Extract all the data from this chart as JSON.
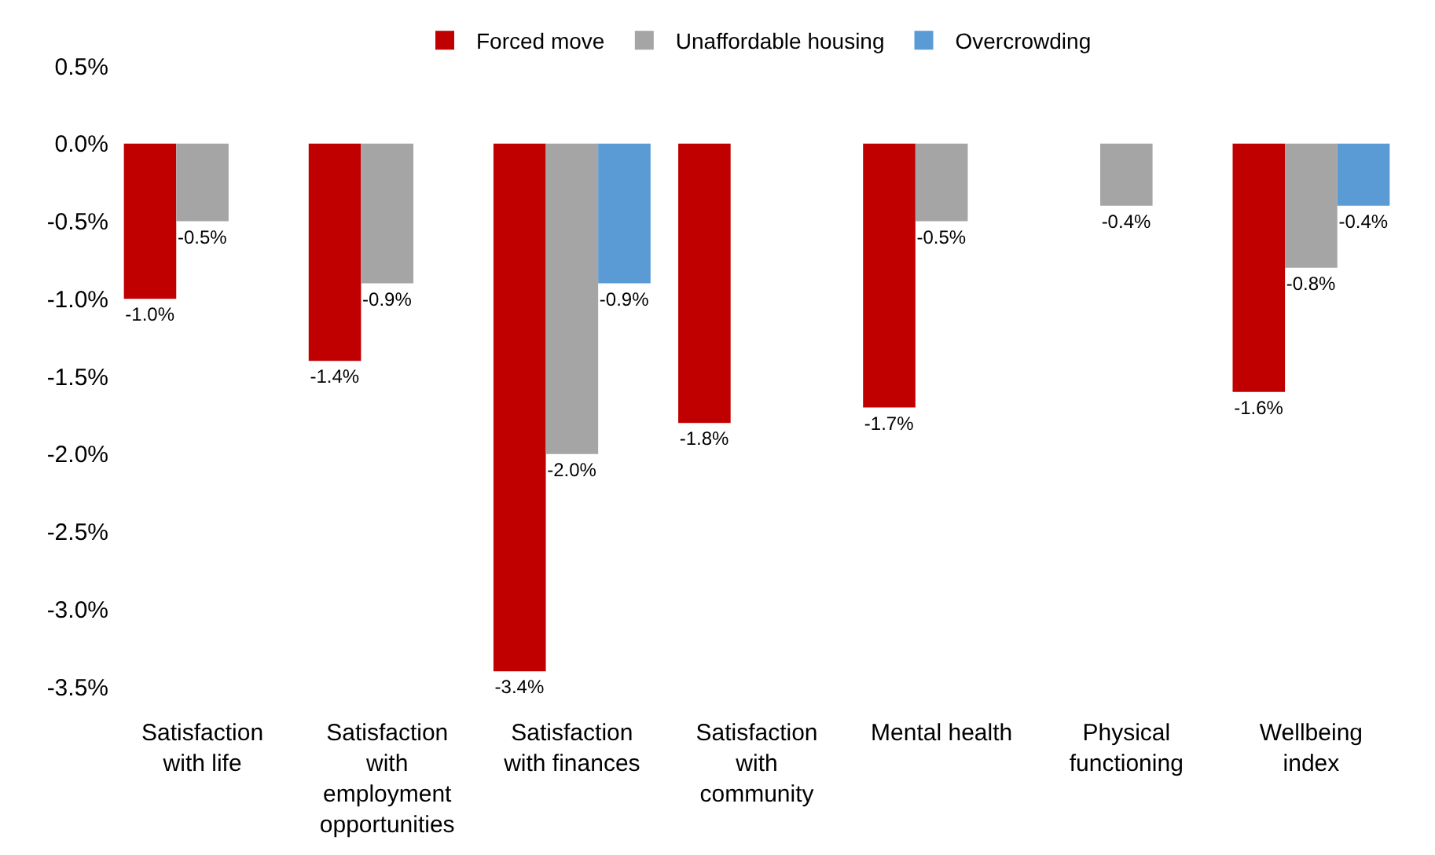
{
  "chart_data": {
    "type": "bar",
    "categories": [
      "Satisfaction with life",
      "Satisfaction with employment opportunities",
      "Satisfaction with finances",
      "Satisfaction with community",
      "Mental health",
      "Physical functioning",
      "Wellbeing index"
    ],
    "series": [
      {
        "name": "Forced move",
        "color": "#c00000",
        "values": [
          -1.0,
          -1.4,
          -3.4,
          -1.8,
          -1.7,
          null,
          -1.6
        ],
        "value_labels": [
          "-1.0%",
          "-1.4%",
          "-3.4%",
          "-1.8%",
          "-1.7%",
          null,
          "-1.6%"
        ]
      },
      {
        "name": "Unaffordable housing",
        "color": "#a5a5a5",
        "values": [
          -0.5,
          -0.9,
          -2.0,
          null,
          -0.5,
          -0.4,
          -0.8
        ],
        "value_labels": [
          "-0.5%",
          "-0.9%",
          "-2.0%",
          null,
          "-0.5%",
          "-0.4%",
          "-0.8%"
        ]
      },
      {
        "name": "Overcrowding",
        "color": "#5b9bd5",
        "values": [
          null,
          null,
          -0.9,
          null,
          null,
          null,
          -0.4
        ],
        "value_labels": [
          null,
          null,
          "-0.9%",
          null,
          null,
          null,
          "-0.4%"
        ]
      }
    ],
    "ylim": [
      -3.5,
      0.5
    ],
    "yticks": [
      {
        "value": 0.5,
        "label": "0.5%"
      },
      {
        "value": 0.0,
        "label": "0.0%"
      },
      {
        "value": -0.5,
        "label": "-0.5%"
      },
      {
        "value": -1.0,
        "label": "-1.0%"
      },
      {
        "value": -1.5,
        "label": "-1.5%"
      },
      {
        "value": -2.0,
        "label": "-2.0%"
      },
      {
        "value": -2.5,
        "label": "-2.5%"
      },
      {
        "value": -3.0,
        "label": "-3.0%"
      },
      {
        "value": -3.5,
        "label": "-3.5%"
      }
    ],
    "legend": "top"
  }
}
